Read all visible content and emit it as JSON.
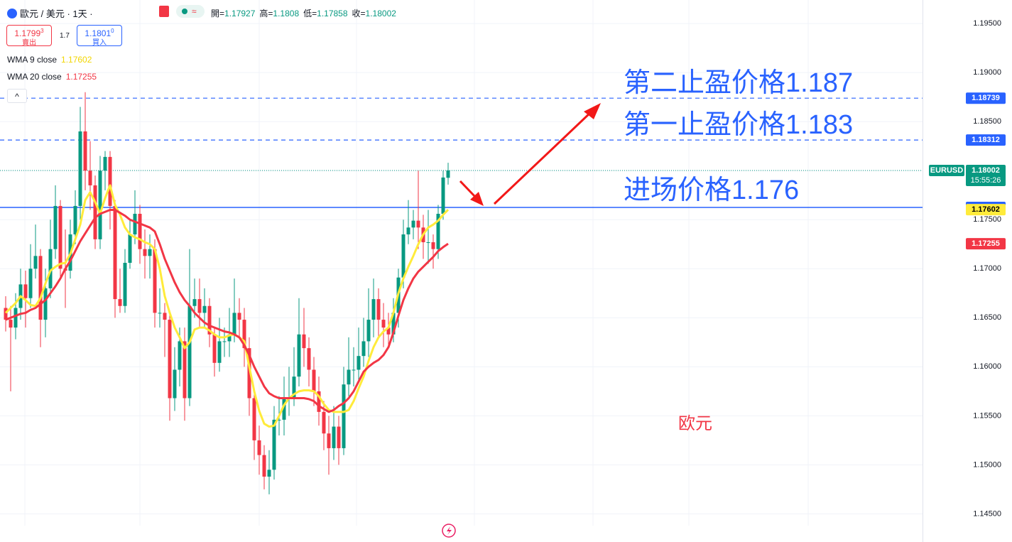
{
  "header": {
    "symbol": "歐元 / 美元 · 1天 ·",
    "ohlc_labels": [
      "開=",
      "高=",
      "低=",
      "收="
    ]
  },
  "trade": {
    "sell_price": "1.1799",
    "sell_pip": "3",
    "sell_label": "賣出",
    "spread": 1.7,
    "buy_price": "1.1801",
    "buy_pip": "0",
    "buy_label": "買入"
  },
  "chart_data": {
    "type": "candlestick",
    "symbol": "EURUSD",
    "countdown": "15:55:26",
    "ylim": [
      1.1438,
      1.1974
    ],
    "yticks": [
      {
        "value": 1.195,
        "label": "1.19500"
      },
      {
        "value": 1.19,
        "label": "1.19000"
      },
      {
        "value": 1.185,
        "label": "1.18500"
      },
      {
        "value": 1.18,
        "label": "1.18000"
      },
      {
        "value": 1.175,
        "label": "1.17500"
      },
      {
        "value": 1.17,
        "label": "1.17000"
      },
      {
        "value": 1.165,
        "label": "1.16500"
      },
      {
        "value": 1.16,
        "label": "1.16000"
      },
      {
        "value": 1.155,
        "label": "1.15500"
      },
      {
        "value": 1.15,
        "label": "1.15000"
      },
      {
        "value": 1.145,
        "label": "1.14500"
      }
    ],
    "grid": true,
    "candles": {
      "up_color": "#089981",
      "down_color": "#f23645",
      "open": [
        1.166,
        1.1648,
        1.164,
        1.166,
        1.1684,
        1.167,
        1.17,
        1.1713,
        1.1648,
        1.168,
        1.172,
        1.1764,
        1.17,
        1.1698,
        1.1735,
        1.1764,
        1.184,
        1.18,
        1.1785,
        1.173,
        1.18,
        1.1814,
        1.1764,
        1.1669,
        1.1662,
        1.1706,
        1.1735,
        1.1756,
        1.172,
        1.1713,
        1.172,
        1.1655,
        1.1655,
        1.1648,
        1.1568,
        1.1597,
        1.1626,
        1.1568,
        1.1662,
        1.1669,
        1.1655,
        1.1662,
        1.1633,
        1.1604,
        1.1626,
        1.1626,
        1.1633,
        1.1655,
        1.1648,
        1.1619,
        1.1568,
        1.1525,
        1.151,
        1.1488,
        1.1495,
        1.1546,
        1.1546,
        1.1568,
        1.1568,
        1.159,
        1.1633,
        1.1619,
        1.1597,
        1.1575,
        1.1554,
        1.1532,
        1.1517,
        1.1539,
        1.1517,
        1.1582,
        1.1597,
        1.1597,
        1.1611,
        1.1626,
        1.1648,
        1.1669,
        1.1648,
        1.164,
        1.1633,
        1.1655,
        1.1691,
        1.1735,
        1.1742,
        1.1749,
        1.1742,
        1.1727,
        1.1727,
        1.172,
        1.1756,
        1.17927
      ],
      "high": [
        1.1672,
        1.1662,
        1.1675,
        1.17,
        1.1698,
        1.1725,
        1.1745,
        1.172,
        1.17,
        1.175,
        1.1785,
        1.177,
        1.174,
        1.175,
        1.178,
        1.1865,
        1.188,
        1.183,
        1.1795,
        1.1815,
        1.182,
        1.182,
        1.177,
        1.17,
        1.172,
        1.175,
        1.178,
        1.1765,
        1.174,
        1.1735,
        1.173,
        1.168,
        1.1665,
        1.1655,
        1.162,
        1.164,
        1.164,
        1.172,
        1.169,
        1.169,
        1.168,
        1.167,
        1.164,
        1.165,
        1.164,
        1.166,
        1.169,
        1.167,
        1.166,
        1.163,
        1.1575,
        1.154,
        1.152,
        1.1515,
        1.156,
        1.157,
        1.159,
        1.16,
        1.162,
        1.167,
        1.166,
        1.163,
        1.161,
        1.159,
        1.1565,
        1.155,
        1.156,
        1.155,
        1.16,
        1.163,
        1.162,
        1.164,
        1.165,
        1.168,
        1.169,
        1.168,
        1.1665,
        1.1655,
        1.167,
        1.17,
        1.175,
        1.177,
        1.176,
        1.18,
        1.1755,
        1.176,
        1.1735,
        1.1765,
        1.18,
        1.1808
      ],
      "low": [
        1.1636,
        1.1575,
        1.1628,
        1.1648,
        1.164,
        1.166,
        1.169,
        1.162,
        1.163,
        1.167,
        1.171,
        1.169,
        1.166,
        1.169,
        1.1725,
        1.175,
        1.178,
        1.176,
        1.172,
        1.172,
        1.178,
        1.174,
        1.165,
        1.1655,
        1.1655,
        1.17,
        1.1725,
        1.1705,
        1.169,
        1.169,
        1.164,
        1.164,
        1.161,
        1.1545,
        1.1555,
        1.158,
        1.1545,
        1.156,
        1.165,
        1.164,
        1.164,
        1.162,
        1.159,
        1.1595,
        1.161,
        1.161,
        1.1625,
        1.163,
        1.16,
        1.155,
        1.1505,
        1.149,
        1.1475,
        1.147,
        1.1485,
        1.153,
        1.153,
        1.155,
        1.156,
        1.158,
        1.16,
        1.158,
        1.156,
        1.154,
        1.1515,
        1.149,
        1.1505,
        1.15,
        1.151,
        1.157,
        1.158,
        1.1585,
        1.16,
        1.161,
        1.163,
        1.163,
        1.162,
        1.162,
        1.1625,
        1.164,
        1.168,
        1.1725,
        1.173,
        1.172,
        1.171,
        1.1705,
        1.17,
        1.171,
        1.175,
        1.17858
      ],
      "close": [
        1.1648,
        1.164,
        1.166,
        1.1684,
        1.167,
        1.17,
        1.1713,
        1.1648,
        1.168,
        1.172,
        1.1764,
        1.17,
        1.1698,
        1.1735,
        1.1764,
        1.184,
        1.18,
        1.1785,
        1.173,
        1.18,
        1.1814,
        1.1764,
        1.1669,
        1.1662,
        1.1706,
        1.1735,
        1.1756,
        1.172,
        1.1713,
        1.172,
        1.1655,
        1.1655,
        1.1648,
        1.1568,
        1.1597,
        1.1626,
        1.1568,
        1.1662,
        1.1669,
        1.1655,
        1.1662,
        1.1633,
        1.1604,
        1.1626,
        1.1626,
        1.1633,
        1.1655,
        1.1648,
        1.1619,
        1.1568,
        1.1525,
        1.151,
        1.1488,
        1.1495,
        1.1546,
        1.1546,
        1.1568,
        1.1568,
        1.159,
        1.1633,
        1.1619,
        1.1597,
        1.1575,
        1.1554,
        1.1532,
        1.1517,
        1.1539,
        1.1517,
        1.1582,
        1.1597,
        1.1597,
        1.1611,
        1.1626,
        1.1648,
        1.1669,
        1.1648,
        1.164,
        1.1633,
        1.1655,
        1.1691,
        1.1735,
        1.1742,
        1.1749,
        1.1742,
        1.1727,
        1.1727,
        1.172,
        1.1756,
        1.1793,
        1.18002
      ]
    },
    "series": [
      {
        "name": "WMA 9 close",
        "color": "#ffeb3b",
        "text_color": "#000000",
        "values": [
          1.1655,
          1.166,
          1.1665,
          1.1672,
          1.1668,
          1.1663,
          1.1662,
          1.167,
          1.1685,
          1.1698,
          1.1702,
          1.1705,
          1.1706,
          1.1715,
          1.173,
          1.1745,
          1.177,
          1.1778,
          1.1768,
          1.1756,
          1.1772,
          1.1785,
          1.1765,
          1.1755,
          1.1742,
          1.1735,
          1.1732,
          1.173,
          1.1727,
          1.1725,
          1.172,
          1.17,
          1.1672,
          1.1655,
          1.164,
          1.163,
          1.1619,
          1.1625,
          1.1638,
          1.164,
          1.164,
          1.1637,
          1.1633,
          1.163,
          1.163,
          1.1632,
          1.1633,
          1.163,
          1.1626,
          1.16,
          1.1575,
          1.1555,
          1.1542,
          1.1539,
          1.154,
          1.155,
          1.1561,
          1.1568,
          1.1572,
          1.1575,
          1.1576,
          1.1576,
          1.1575,
          1.157,
          1.1562,
          1.1556,
          1.1554,
          1.1554,
          1.1554,
          1.1556,
          1.1565,
          1.1578,
          1.159,
          1.1606,
          1.162,
          1.163,
          1.1636,
          1.164,
          1.1655,
          1.1675,
          1.169,
          1.1702,
          1.1713,
          1.1725,
          1.1735,
          1.1742,
          1.1745,
          1.1749,
          1.1755,
          1.17602
        ]
      },
      {
        "name": "WMA 20 close",
        "color": "#f23645",
        "text_color": "#ffffff",
        "values": [
          1.1648,
          1.165,
          1.1652,
          1.1654,
          1.1655,
          1.1658,
          1.166,
          1.1664,
          1.1668,
          1.1675,
          1.1682,
          1.169,
          1.17,
          1.1708,
          1.1718,
          1.1728,
          1.1736,
          1.1744,
          1.1752,
          1.1756,
          1.1758,
          1.176,
          1.176,
          1.1757,
          1.1754,
          1.175,
          1.1748,
          1.1746,
          1.1744,
          1.1742,
          1.1738,
          1.1725,
          1.171,
          1.1698,
          1.1686,
          1.1676,
          1.1668,
          1.1662,
          1.1655,
          1.165,
          1.1645,
          1.1642,
          1.164,
          1.1638,
          1.1636,
          1.1635,
          1.1633,
          1.163,
          1.1622,
          1.1612,
          1.16,
          1.159,
          1.158,
          1.1573,
          1.157,
          1.1568,
          1.1568,
          1.1568,
          1.1568,
          1.1568,
          1.1568,
          1.1567,
          1.1565,
          1.156,
          1.1557,
          1.1554,
          1.1556,
          1.156,
          1.1563,
          1.1568,
          1.1575,
          1.1585,
          1.1595,
          1.16,
          1.1604,
          1.1607,
          1.1612,
          1.162,
          1.1635,
          1.1652,
          1.1668,
          1.168,
          1.169,
          1.1697,
          1.1702,
          1.1707,
          1.1712,
          1.1718,
          1.1722,
          1.17255
        ]
      }
    ],
    "levels": [
      {
        "value": 1.18739,
        "style": "dashed",
        "color": "#2962ff"
      },
      {
        "value": 1.18312,
        "style": "dashed",
        "color": "#2962ff"
      },
      {
        "value": 1.17625,
        "style": "solid",
        "color": "#2962ff"
      }
    ],
    "annotations": [
      {
        "text": "第二止盈价格1.187",
        "color": "#2962ff"
      },
      {
        "text": "第一止盈价格1.183",
        "color": "#2962ff"
      },
      {
        "text": "进场价格1.176",
        "color": "#2962ff"
      },
      {
        "text": "欧元",
        "color": "#f23645"
      }
    ]
  }
}
